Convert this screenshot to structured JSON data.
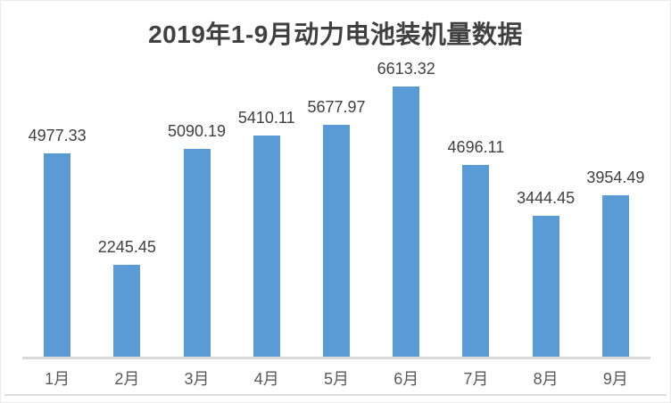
{
  "chart_data": {
    "type": "bar",
    "title": "2019年1-9月动力电池装机量数据",
    "categories": [
      "1月",
      "2月",
      "3月",
      "4月",
      "5月",
      "6月",
      "7月",
      "8月",
      "9月"
    ],
    "values": [
      4977.33,
      2245.45,
      5090.19,
      5410.11,
      5677.97,
      6613.32,
      4696.11,
      3444.45,
      3954.49
    ],
    "data_labels": [
      "4977.33",
      "2245.45",
      "5090.19",
      "5410.11",
      "5677.97",
      "6613.32",
      "4696.11",
      "3444.45",
      "3954.49"
    ],
    "xlabel": "",
    "ylabel": "",
    "ylim": [
      0,
      6613.32
    ],
    "grid": false,
    "legend": "none",
    "y_axis_visible": false,
    "data_labels_visible": true,
    "colors": {
      "bar": "#5B9BD5",
      "title_text": "#404040",
      "data_label_text": "#404040",
      "tick_label_text": "#595959",
      "axis_line": "#d9d9d9"
    }
  }
}
